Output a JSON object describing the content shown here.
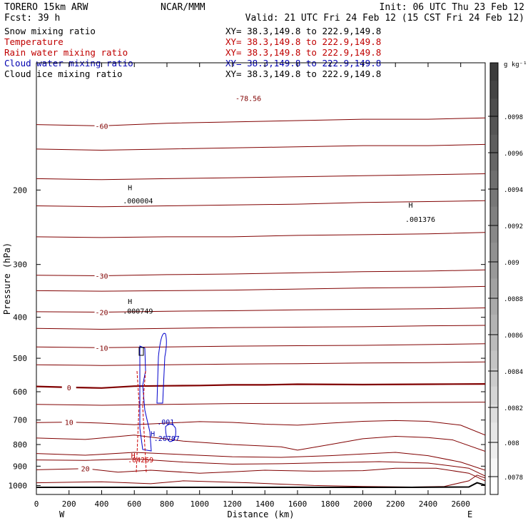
{
  "header": {
    "model": "TORERO  15km ARW",
    "center": "NCAR/MMM",
    "init": "Init: 06 UTC Thu 23 Feb 12",
    "fcst": "Fcst:   39 h",
    "valid": "Valid: 21 UTC Fri 24 Feb 12 (15 CST Fri 24 Feb 12)"
  },
  "fields": [
    {
      "name": "Snow mixing ratio",
      "xs": "XY=  38.3,149.8 to 222.9,149.8",
      "color": "#000000",
      "xs_color": "#000000"
    },
    {
      "name": "Temperature",
      "xs": "XY=  38.3,149.8 to 222.9,149.8",
      "color": "#c00000",
      "xs_color": "#c00000"
    },
    {
      "name": "Rain water mixing ratio",
      "xs": "XY=  38.3,149.8 to 222.9,149.8",
      "color": "#c00000",
      "xs_color": "#c00000"
    },
    {
      "name": "Cloud water mixing ratio",
      "xs": "XY=  38.3,149.8 to 222.9,149.8",
      "color": "#0000b0",
      "xs_color": "#0000b0"
    },
    {
      "name": "Cloud ice mixing ratio",
      "xs": "XY=  38.3,149.8 to 222.9,149.8",
      "color": "#000000",
      "xs_color": "#000000"
    }
  ],
  "colorbar": {
    "unit": "g kg⁻¹",
    "ticks": [
      ".0098",
      ".0096",
      ".0094",
      ".0092",
      ".009",
      ".0088",
      ".0086",
      ".0084",
      ".0082",
      ".008",
      ".0078"
    ]
  },
  "chart_data": {
    "type": "line",
    "subtype": "vertical cross-section contour plot",
    "xlabel": "Distance (km)",
    "ylabel": "Pressure (hPa)",
    "xlim": [
      0,
      2750
    ],
    "ylim": [
      1050,
      100
    ],
    "y_scale": "log",
    "x_ticks": [
      0,
      200,
      400,
      600,
      800,
      1000,
      1200,
      1400,
      1600,
      1800,
      2000,
      2200,
      2400,
      2600
    ],
    "y_ticks": [
      200,
      300,
      400,
      500,
      600,
      700,
      800,
      900,
      1000
    ],
    "x_end_labels": {
      "left": "W",
      "right": "E"
    },
    "temperature_contours": [
      {
        "level": -60,
        "color": "#800000",
        "points": [
          [
            0,
            140
          ],
          [
            400,
            141
          ],
          [
            800,
            139
          ],
          [
            1200,
            138
          ],
          [
            1600,
            137
          ],
          [
            2000,
            136
          ],
          [
            2400,
            136
          ],
          [
            2750,
            135
          ]
        ]
      },
      {
        "level": -50,
        "color": "#800000",
        "points": [
          [
            0,
            160
          ],
          [
            400,
            161
          ],
          [
            800,
            160
          ],
          [
            1200,
            159
          ],
          [
            1600,
            158
          ],
          [
            2000,
            157
          ],
          [
            2400,
            157
          ],
          [
            2750,
            156
          ]
        ]
      },
      {
        "level": -45,
        "color": "#800000",
        "points": [
          [
            0,
            188
          ],
          [
            400,
            189
          ],
          [
            800,
            188
          ],
          [
            1200,
            187
          ],
          [
            1600,
            186
          ],
          [
            2000,
            185
          ],
          [
            2400,
            184
          ],
          [
            2750,
            183
          ]
        ]
      },
      {
        "level": -40,
        "color": "#800000",
        "points": [
          [
            0,
            218
          ],
          [
            400,
            219
          ],
          [
            800,
            218
          ],
          [
            1200,
            217
          ],
          [
            1600,
            216
          ],
          [
            2000,
            214
          ],
          [
            2400,
            213
          ],
          [
            2750,
            212
          ]
        ]
      },
      {
        "level": -35,
        "color": "#800000",
        "points": [
          [
            0,
            258
          ],
          [
            400,
            259
          ],
          [
            800,
            258
          ],
          [
            1200,
            258
          ],
          [
            1600,
            256
          ],
          [
            2000,
            255
          ],
          [
            2400,
            254
          ],
          [
            2750,
            252
          ]
        ]
      },
      {
        "level": -30,
        "color": "#800000",
        "points": [
          [
            0,
            318
          ],
          [
            400,
            319
          ],
          [
            800,
            317
          ],
          [
            1200,
            316
          ],
          [
            1600,
            314
          ],
          [
            2000,
            312
          ],
          [
            2400,
            311
          ],
          [
            2750,
            309
          ]
        ]
      },
      {
        "level": -25,
        "color": "#800000",
        "points": [
          [
            0,
            346
          ],
          [
            400,
            347
          ],
          [
            800,
            346
          ],
          [
            1200,
            345
          ],
          [
            1600,
            343
          ],
          [
            2000,
            341
          ],
          [
            2400,
            340
          ],
          [
            2750,
            338
          ]
        ]
      },
      {
        "level": -20,
        "color": "#800000",
        "points": [
          [
            0,
            388
          ],
          [
            400,
            389
          ],
          [
            800,
            387
          ],
          [
            1200,
            386
          ],
          [
            1600,
            384
          ],
          [
            2000,
            383
          ],
          [
            2400,
            382
          ],
          [
            2750,
            380
          ]
        ]
      },
      {
        "level": -15,
        "color": "#800000",
        "points": [
          [
            0,
            425
          ],
          [
            400,
            427
          ],
          [
            800,
            425
          ],
          [
            1200,
            423
          ],
          [
            1600,
            422
          ],
          [
            2000,
            421
          ],
          [
            2400,
            419
          ],
          [
            2750,
            418
          ]
        ]
      },
      {
        "level": -10,
        "color": "#800000",
        "points": [
          [
            0,
            470
          ],
          [
            400,
            472
          ],
          [
            800,
            470
          ],
          [
            1200,
            468
          ],
          [
            1600,
            467
          ],
          [
            2000,
            466
          ],
          [
            2400,
            464
          ],
          [
            2750,
            462
          ]
        ]
      },
      {
        "level": -5,
        "color": "#800000",
        "points": [
          [
            0,
            518
          ],
          [
            400,
            520
          ],
          [
            800,
            518
          ],
          [
            1200,
            516
          ],
          [
            1600,
            515
          ],
          [
            2000,
            513
          ],
          [
            2400,
            512
          ],
          [
            2750,
            510
          ]
        ]
      },
      {
        "level": 0,
        "color": "#800000",
        "points": [
          [
            0,
            583
          ],
          [
            200,
            586
          ],
          [
            400,
            588
          ],
          [
            600,
            582
          ],
          [
            800,
            581
          ],
          [
            1000,
            580
          ],
          [
            1200,
            578
          ],
          [
            1400,
            578
          ],
          [
            1600,
            576
          ],
          [
            2000,
            577
          ],
          [
            2400,
            576
          ],
          [
            2750,
            575
          ]
        ]
      },
      {
        "level": 5,
        "color": "#800000",
        "points": [
          [
            0,
            643
          ],
          [
            400,
            646
          ],
          [
            800,
            643
          ],
          [
            1200,
            640
          ],
          [
            1600,
            639
          ],
          [
            2000,
            638
          ],
          [
            2400,
            636
          ],
          [
            2750,
            635
          ]
        ]
      },
      {
        "level": 10,
        "color": "#800000",
        "points": [
          [
            0,
            710
          ],
          [
            200,
            708
          ],
          [
            400,
            712
          ],
          [
            600,
            718
          ],
          [
            800,
            712
          ],
          [
            1000,
            706
          ],
          [
            1200,
            709
          ],
          [
            1400,
            716
          ],
          [
            1600,
            720
          ],
          [
            1800,
            712
          ],
          [
            2000,
            705
          ],
          [
            2200,
            702
          ],
          [
            2400,
            705
          ],
          [
            2600,
            720
          ],
          [
            2750,
            760
          ]
        ]
      },
      {
        "level": 12,
        "color": "#800000",
        "points": [
          [
            0,
            772
          ],
          [
            300,
            778
          ],
          [
            600,
            760
          ],
          [
            900,
            785
          ],
          [
            1200,
            800
          ],
          [
            1500,
            810
          ],
          [
            1600,
            825
          ],
          [
            1800,
            800
          ],
          [
            2000,
            775
          ],
          [
            2200,
            765
          ],
          [
            2400,
            770
          ],
          [
            2550,
            780
          ],
          [
            2750,
            830
          ]
        ]
      },
      {
        "level": 15,
        "color": "#800000",
        "points": [
          [
            0,
            840
          ],
          [
            300,
            848
          ],
          [
            600,
            835
          ],
          [
            900,
            845
          ],
          [
            1200,
            855
          ],
          [
            1500,
            858
          ],
          [
            1800,
            850
          ],
          [
            2000,
            842
          ],
          [
            2200,
            835
          ],
          [
            2400,
            850
          ],
          [
            2600,
            880
          ],
          [
            2750,
            920
          ]
        ]
      },
      {
        "level": 18,
        "color": "#800000",
        "points": [
          [
            0,
            870
          ],
          [
            300,
            872
          ],
          [
            600,
            865
          ],
          [
            900,
            880
          ],
          [
            1200,
            890
          ],
          [
            1500,
            888
          ],
          [
            1800,
            883
          ],
          [
            2100,
            878
          ],
          [
            2400,
            885
          ],
          [
            2650,
            910
          ],
          [
            2750,
            950
          ]
        ]
      },
      {
        "level": 20,
        "color": "#800000",
        "points": [
          [
            0,
            918
          ],
          [
            300,
            912
          ],
          [
            500,
            930
          ],
          [
            700,
            920
          ],
          [
            1000,
            935
          ],
          [
            1200,
            928
          ],
          [
            1400,
            920
          ],
          [
            1700,
            925
          ],
          [
            2000,
            922
          ],
          [
            2200,
            910
          ],
          [
            2450,
            910
          ],
          [
            2650,
            935
          ],
          [
            2750,
            975
          ]
        ]
      },
      {
        "level": 22,
        "color": "#800000",
        "points": [
          [
            0,
            985
          ],
          [
            400,
            980
          ],
          [
            700,
            990
          ],
          [
            900,
            975
          ],
          [
            1300,
            985
          ],
          [
            1700,
            1000
          ],
          [
            2000,
            1005
          ],
          [
            2300,
            1008
          ],
          [
            2500,
            1005
          ],
          [
            2650,
            975
          ],
          [
            2700,
            945
          ],
          [
            2750,
            960
          ]
        ]
      }
    ],
    "terrain": {
      "color": "#000000",
      "points": [
        [
          0,
          1010
        ],
        [
          600,
          1010
        ],
        [
          1200,
          1010
        ],
        [
          1800,
          1010
        ],
        [
          2300,
          1010
        ],
        [
          2650,
          1008
        ],
        [
          2700,
          985
        ],
        [
          2750,
          998
        ]
      ]
    },
    "annotations": [
      {
        "text": "H",
        "x": 560,
        "y": 200,
        "color": "#000000"
      },
      {
        "text": ".000004",
        "x": 530,
        "y": 215,
        "color": "#000000"
      },
      {
        "text": "H",
        "x": 2280,
        "y": 220,
        "color": "#000000"
      },
      {
        "text": ".001376",
        "x": 2260,
        "y": 238,
        "color": "#000000"
      },
      {
        "text": "H",
        "x": 560,
        "y": 372,
        "color": "#000000"
      },
      {
        "text": ".000749",
        "x": 530,
        "y": 392,
        "color": "#000000"
      },
      {
        "text": "-78.56",
        "x": 1220,
        "y": 123,
        "color": "#800000"
      },
      {
        "text": "H",
        "x": 700,
        "y": 765,
        "color": "#0000b0"
      },
      {
        "text": ".26787",
        "x": 720,
        "y": 785,
        "color": "#0000b0"
      },
      {
        "text": ".001",
        "x": 740,
        "y": 718,
        "color": "#0000b0"
      },
      {
        "text": "H",
        "x": 580,
        "y": 862,
        "color": "#c00000"
      },
      {
        "text": ".04269",
        "x": 560,
        "y": 882,
        "color": "#c00000"
      }
    ]
  }
}
